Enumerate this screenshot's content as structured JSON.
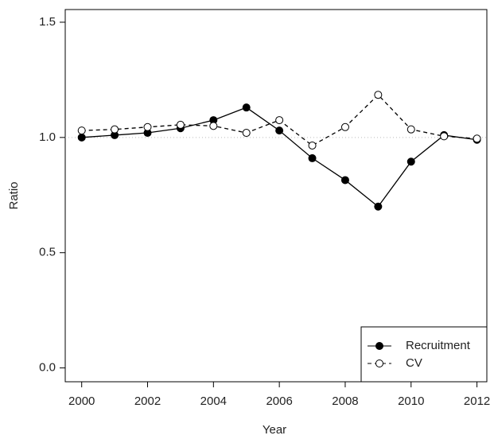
{
  "chart_data": {
    "type": "line",
    "x_label": "Year",
    "y_label": "Ratio",
    "x": [
      2000,
      2001,
      2002,
      2003,
      2004,
      2005,
      2006,
      2007,
      2008,
      2009,
      2010,
      2011,
      2012
    ],
    "series": [
      {
        "name": "Recruitment",
        "color": "#000000",
        "linestyle": "solid",
        "marker": "filled",
        "values": [
          1.0,
          1.01,
          1.02,
          1.04,
          1.075,
          1.13,
          1.03,
          0.91,
          0.815,
          0.7,
          0.895,
          1.01,
          0.99
        ]
      },
      {
        "name": "CV",
        "color": "#000000",
        "linestyle": "dashed",
        "marker": "open",
        "values": [
          1.03,
          1.035,
          1.045,
          1.055,
          1.05,
          1.02,
          1.075,
          0.965,
          1.045,
          1.185,
          1.035,
          1.005,
          0.995
        ]
      }
    ],
    "xlim": [
      1999.5,
      2012.3
    ],
    "ylim": [
      -0.06,
      1.555
    ],
    "xticks": [
      2000,
      2002,
      2004,
      2006,
      2008,
      2010,
      2012
    ],
    "yticks": [
      {
        "value": 0,
        "label": "0.0"
      },
      {
        "value": 0.5,
        "label": "0.5"
      },
      {
        "value": 1,
        "label": "1.0"
      },
      {
        "value": 1.5,
        "label": "1.5"
      }
    ],
    "hline": 1,
    "legend": "bottom-right",
    "grid": false
  }
}
